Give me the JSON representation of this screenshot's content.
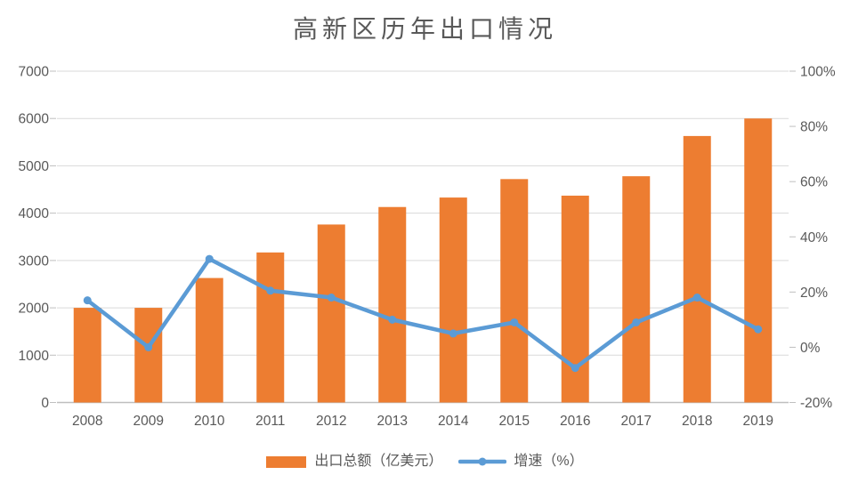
{
  "chart_data": {
    "type": "combo-bar-line",
    "title": "高新区历年出口情况",
    "categories": [
      "2008",
      "2009",
      "2010",
      "2011",
      "2012",
      "2013",
      "2014",
      "2015",
      "2016",
      "2017",
      "2018",
      "2019"
    ],
    "series": [
      {
        "name": "出口总额（亿美元）",
        "type": "bar",
        "axis": "left",
        "color": "#ED7D31",
        "values": [
          2000,
          2000,
          2630,
          3170,
          3760,
          4130,
          4330,
          4720,
          4370,
          4780,
          5630,
          6000
        ]
      },
      {
        "name": "增速（%）",
        "type": "line",
        "axis": "right",
        "color": "#5B9BD5",
        "values": [
          17,
          0,
          32,
          20.5,
          18,
          10,
          5,
          9,
          -7.5,
          9,
          18,
          6.5
        ]
      }
    ],
    "left_axis": {
      "min": 0,
      "max": 7000,
      "step": 1000,
      "labels": [
        "0",
        "1000",
        "2000",
        "3000",
        "4000",
        "5000",
        "6000",
        "7000"
      ]
    },
    "right_axis": {
      "min": -20,
      "max": 100,
      "step": 20,
      "labels": [
        "-20%",
        "0%",
        "20%",
        "40%",
        "60%",
        "80%",
        "100%"
      ]
    },
    "grid": true,
    "legend_position": "bottom",
    "colors": {
      "grid": "#D9D9D9",
      "tick": "#BFBFBF",
      "axis_line": "#BFBFBF",
      "text": "#595959",
      "background": "#FFFFFF"
    }
  }
}
